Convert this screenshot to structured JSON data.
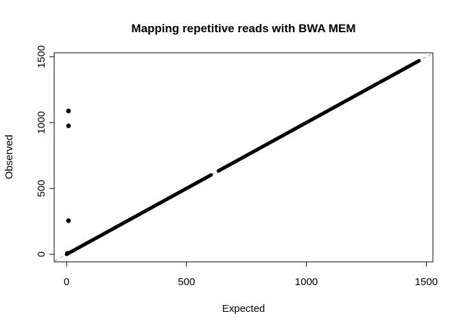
{
  "chart_data": {
    "type": "scatter",
    "title": "Mapping repetitive reads with BWA MEM",
    "xlabel": "Expected",
    "ylabel": "Observed",
    "xlim": [
      -50,
      1520
    ],
    "ylim": [
      -50,
      1520
    ],
    "xticks": [
      0,
      500,
      1000,
      1500
    ],
    "yticks": [
      0,
      500,
      1000,
      1500
    ],
    "grid": false,
    "legend": "none",
    "reference_line": {
      "type": "y=x",
      "style": "dashed",
      "color": "#e07a7a"
    },
    "point_color": "#000000",
    "diagonal_run": {
      "x_start": 0,
      "x_end": 1470,
      "gaps": [
        [
          603,
          632
        ],
        [
          1300,
          1308
        ]
      ]
    },
    "outliers": [
      {
        "x": 8,
        "y": 1088
      },
      {
        "x": 8,
        "y": 975
      },
      {
        "x": 8,
        "y": 255
      },
      {
        "x": 4,
        "y": 8
      }
    ]
  }
}
